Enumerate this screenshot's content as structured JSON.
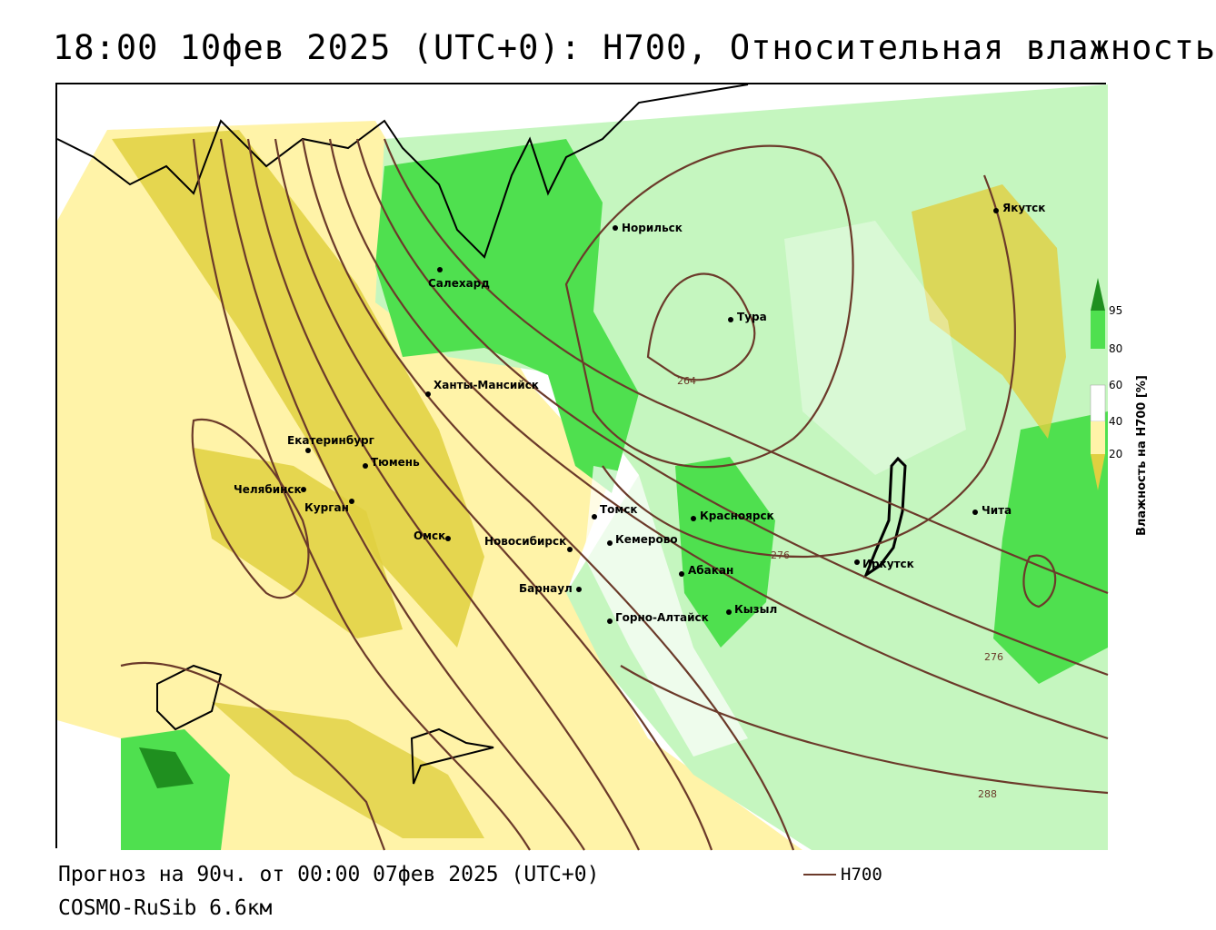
{
  "title": "18:00 10фев 2025 (UTC+0): H700, Относительная влажность",
  "footer": {
    "forecast": "Прогноз на 90ч. от 00:00 07фев 2025 (UTC+0)",
    "model": "COSMO-RuSib 6.6км",
    "legend_label": "H700"
  },
  "colorbar": {
    "title": "Влажность на H700 [%]",
    "ticks": [
      "95",
      "80",
      "60",
      "40",
      "20"
    ],
    "colors": {
      "c95": "#1f8f1f",
      "c80": "#4fe04f",
      "c60": "#c5f6bf",
      "c40": "#ffffff",
      "c20": "#fff3a8",
      "c0": "#e0d040"
    }
  },
  "contour_labels": [
    "264",
    "276",
    "276",
    "288"
  ],
  "cities": [
    {
      "name": "Якутск"
    },
    {
      "name": "Норильск"
    },
    {
      "name": "Салехард"
    },
    {
      "name": "Тура"
    },
    {
      "name": "Ханты-Мансийск"
    },
    {
      "name": "Екатеринбург"
    },
    {
      "name": "Тюмень"
    },
    {
      "name": "Челябинск"
    },
    {
      "name": "Курган"
    },
    {
      "name": "Омск"
    },
    {
      "name": "Новосибирск"
    },
    {
      "name": "Томск"
    },
    {
      "name": "Кемерово"
    },
    {
      "name": "Красноярск"
    },
    {
      "name": "Абакан"
    },
    {
      "name": "Барнаул"
    },
    {
      "name": "Горно-Алтайск"
    },
    {
      "name": "Кызыл"
    },
    {
      "name": "Иркутск"
    },
    {
      "name": "Чита"
    }
  ]
}
